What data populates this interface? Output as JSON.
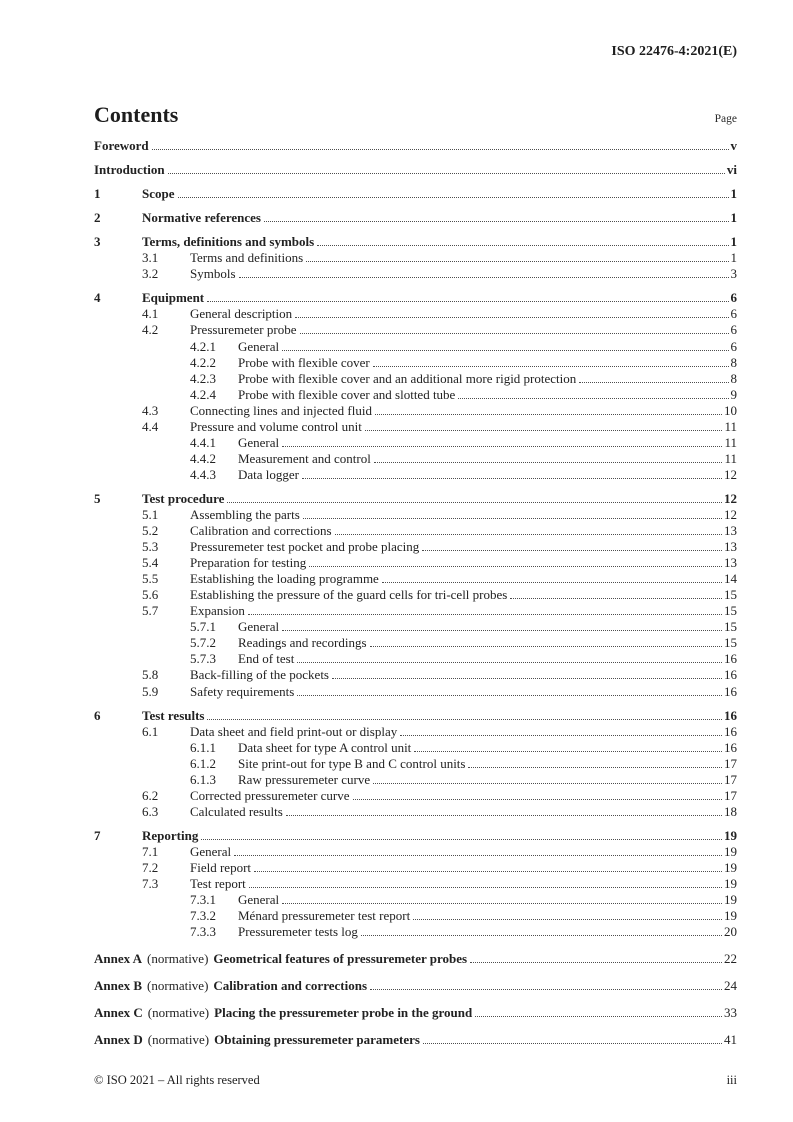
{
  "header": {
    "doc_ref": "ISO 22476-4:2021(E)"
  },
  "contents": {
    "title": "Contents",
    "page_label": "Page"
  },
  "toc": {
    "entries": [
      {
        "type": "front",
        "level": 1,
        "title": "Foreword",
        "page": "v"
      },
      {
        "type": "front",
        "level": 1,
        "title": "Introduction",
        "page": "vi"
      },
      {
        "type": "chapter",
        "level": 1,
        "num": "1",
        "title": "Scope",
        "page": "1"
      },
      {
        "type": "chapter",
        "level": 1,
        "num": "2",
        "title": "Normative references",
        "page": "1"
      },
      {
        "type": "chapter",
        "level": 1,
        "num": "3",
        "title": "Terms, definitions and symbols",
        "page": "1"
      },
      {
        "type": "sub",
        "level": 2,
        "num": "3.1",
        "title": "Terms and definitions",
        "page": "1"
      },
      {
        "type": "sub",
        "level": 2,
        "num": "3.2",
        "title": "Symbols",
        "page": "3"
      },
      {
        "type": "chapter",
        "level": 1,
        "num": "4",
        "title": "Equipment",
        "page": "6"
      },
      {
        "type": "sub",
        "level": 2,
        "num": "4.1",
        "title": "General description",
        "page": "6"
      },
      {
        "type": "sub",
        "level": 2,
        "num": "4.2",
        "title": "Pressuremeter probe",
        "page": "6"
      },
      {
        "type": "sub",
        "level": 3,
        "num": "4.2.1",
        "title": "General",
        "page": "6"
      },
      {
        "type": "sub",
        "level": 3,
        "num": "4.2.2",
        "title": "Probe with flexible cover",
        "page": "8"
      },
      {
        "type": "sub",
        "level": 3,
        "num": "4.2.3",
        "title": "Probe with flexible cover and an additional more rigid protection",
        "page": "8"
      },
      {
        "type": "sub",
        "level": 3,
        "num": "4.2.4",
        "title": "Probe with flexible cover and slotted tube",
        "page": "9"
      },
      {
        "type": "sub",
        "level": 2,
        "num": "4.3",
        "title": "Connecting lines and injected fluid",
        "page": "10"
      },
      {
        "type": "sub",
        "level": 2,
        "num": "4.4",
        "title": "Pressure and volume control unit",
        "page": "11"
      },
      {
        "type": "sub",
        "level": 3,
        "num": "4.4.1",
        "title": "General",
        "page": "11"
      },
      {
        "type": "sub",
        "level": 3,
        "num": "4.4.2",
        "title": "Measurement and control",
        "page": "11"
      },
      {
        "type": "sub",
        "level": 3,
        "num": "4.4.3",
        "title": "Data logger",
        "page": "12"
      },
      {
        "type": "chapter",
        "level": 1,
        "num": "5",
        "title": "Test procedure",
        "page": "12"
      },
      {
        "type": "sub",
        "level": 2,
        "num": "5.1",
        "title": "Assembling the parts",
        "page": "12"
      },
      {
        "type": "sub",
        "level": 2,
        "num": "5.2",
        "title": "Calibration and corrections",
        "page": "13"
      },
      {
        "type": "sub",
        "level": 2,
        "num": "5.3",
        "title": "Pressuremeter test pocket and probe placing",
        "page": "13"
      },
      {
        "type": "sub",
        "level": 2,
        "num": "5.4",
        "title": "Preparation for testing",
        "page": "13"
      },
      {
        "type": "sub",
        "level": 2,
        "num": "5.5",
        "title": "Establishing the loading programme",
        "page": "14"
      },
      {
        "type": "sub",
        "level": 2,
        "num": "5.6",
        "title": "Establishing the pressure of the guard cells for tri-cell probes",
        "page": "15"
      },
      {
        "type": "sub",
        "level": 2,
        "num": "5.7",
        "title": "Expansion",
        "page": "15"
      },
      {
        "type": "sub",
        "level": 3,
        "num": "5.7.1",
        "title": "General",
        "page": "15"
      },
      {
        "type": "sub",
        "level": 3,
        "num": "5.7.2",
        "title": "Readings and recordings",
        "page": "15"
      },
      {
        "type": "sub",
        "level": 3,
        "num": "5.7.3",
        "title": "End of test",
        "page": "16"
      },
      {
        "type": "sub",
        "level": 2,
        "num": "5.8",
        "title": "Back-filling of the pockets",
        "page": "16"
      },
      {
        "type": "sub",
        "level": 2,
        "num": "5.9",
        "title": "Safety requirements",
        "page": "16"
      },
      {
        "type": "chapter",
        "level": 1,
        "num": "6",
        "title": "Test results",
        "page": "16"
      },
      {
        "type": "sub",
        "level": 2,
        "num": "6.1",
        "title": "Data sheet and field print-out or display",
        "page": "16"
      },
      {
        "type": "sub",
        "level": 3,
        "num": "6.1.1",
        "title": "Data sheet for type A control unit",
        "page": "16"
      },
      {
        "type": "sub",
        "level": 3,
        "num": "6.1.2",
        "title": "Site print-out for type B and C control units",
        "page": "17"
      },
      {
        "type": "sub",
        "level": 3,
        "num": "6.1.3",
        "title": "Raw pressuremeter curve",
        "page": "17"
      },
      {
        "type": "sub",
        "level": 2,
        "num": "6.2",
        "title": "Corrected pressuremeter curve",
        "page": "17"
      },
      {
        "type": "sub",
        "level": 2,
        "num": "6.3",
        "title": "Calculated results",
        "page": "18"
      },
      {
        "type": "chapter",
        "level": 1,
        "num": "7",
        "title": "Reporting",
        "page": "19"
      },
      {
        "type": "sub",
        "level": 2,
        "num": "7.1",
        "title": "General",
        "page": "19"
      },
      {
        "type": "sub",
        "level": 2,
        "num": "7.2",
        "title": "Field report",
        "page": "19"
      },
      {
        "type": "sub",
        "level": 2,
        "num": "7.3",
        "title": "Test report",
        "page": "19"
      },
      {
        "type": "sub",
        "level": 3,
        "num": "7.3.1",
        "title": "General",
        "page": "19"
      },
      {
        "type": "sub",
        "level": 3,
        "num": "7.3.2",
        "title": "Ménard pressuremeter test report",
        "page": "19"
      },
      {
        "type": "sub",
        "level": 3,
        "num": "7.3.3",
        "title": "Pressuremeter tests log",
        "page": "20"
      },
      {
        "type": "annex",
        "label": "Annex A",
        "tag": "(normative)",
        "title": "Geometrical features of pressuremeter probes",
        "page": "22"
      },
      {
        "type": "annex",
        "label": "Annex B",
        "tag": "(normative)",
        "title": "Calibration and corrections",
        "page": "24"
      },
      {
        "type": "annex",
        "label": "Annex C",
        "tag": "(normative)",
        "title": "Placing the pressuremeter probe in the ground",
        "page": "33"
      },
      {
        "type": "annex",
        "label": "Annex D",
        "tag": "(normative)",
        "title": "Obtaining pressuremeter parameters",
        "page": "41"
      }
    ]
  },
  "footer": {
    "copyright": "© ISO 2021 – All rights reserved",
    "page_number": "iii"
  }
}
